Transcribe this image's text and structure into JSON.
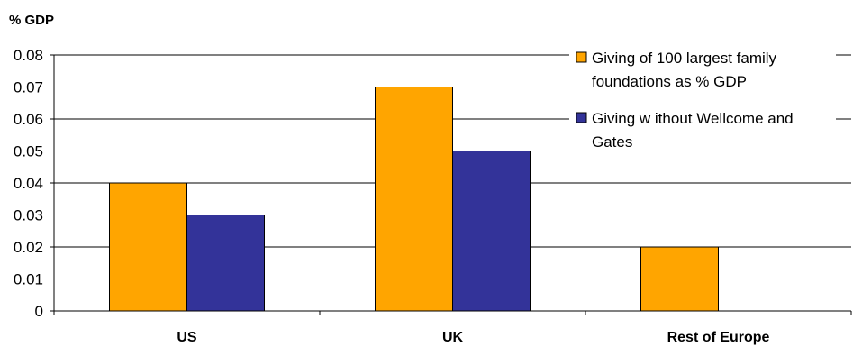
{
  "chart_data": {
    "type": "bar",
    "title": "",
    "ylabel": "% GDP",
    "xlabel": "",
    "categories": [
      "US",
      "UK",
      "Rest of Europe"
    ],
    "series": [
      {
        "name": "Giving of 100 largest family foundations as % GDP",
        "values": [
          0.04,
          0.07,
          0.02
        ],
        "color": "#FFA500"
      },
      {
        "name": "Giving without Wellcome and Gates",
        "values": [
          0.03,
          0.05,
          null
        ],
        "color": "#333399"
      }
    ],
    "legend_lines": [
      [
        "Giving of 100 largest family",
        "foundations as % GDP"
      ],
      [
        "Giving w ithout Wellcome and",
        "Gates"
      ]
    ],
    "yticks": [
      "0",
      "0.01",
      "0.02",
      "0.03",
      "0.04",
      "0.05",
      "0.06",
      "0.07",
      "0.08"
    ],
    "ylim": [
      0,
      0.08
    ],
    "grid": true,
    "legend_position": "top-right"
  }
}
